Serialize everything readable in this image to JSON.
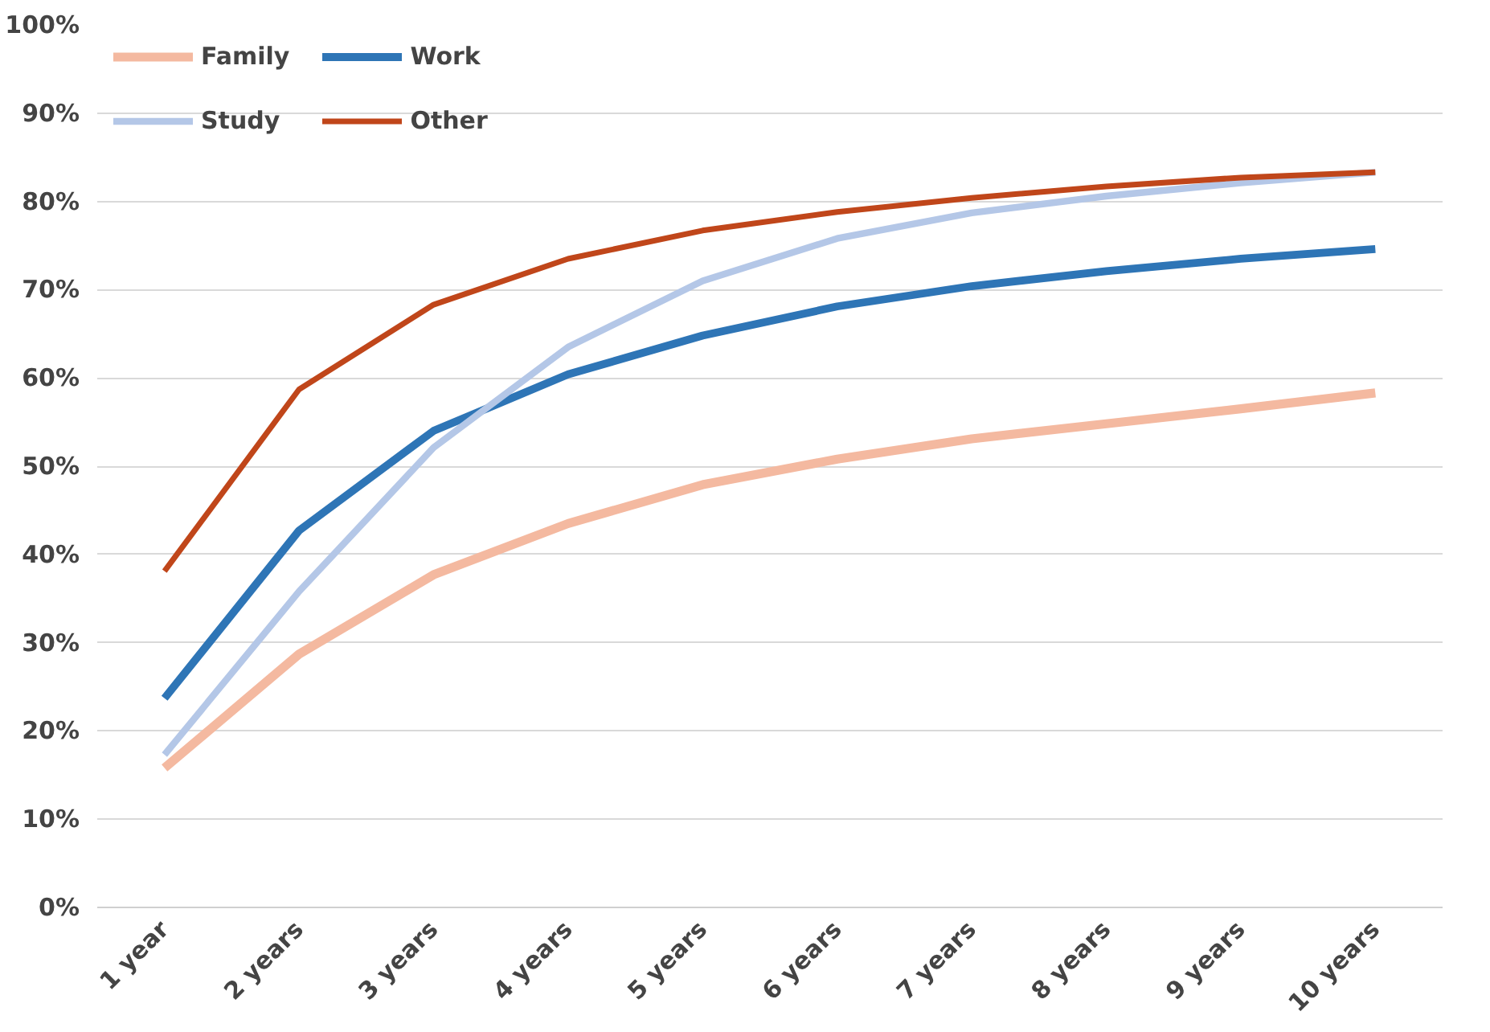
{
  "chart_data": {
    "type": "line",
    "categories": [
      "1 year",
      "2 years",
      "3 years",
      "4 years",
      "5 years",
      "6 years",
      "7 years",
      "8 years",
      "9 years",
      "10 years"
    ],
    "series": [
      {
        "name": "Family",
        "color": "#f4b9a0",
        "values": [
          15.8,
          28.7,
          37.7,
          43.5,
          47.9,
          50.8,
          53.1,
          54.8,
          56.5,
          58.3
        ]
      },
      {
        "name": "Work",
        "color": "#2e75b6",
        "values": [
          23.7,
          42.7,
          54.0,
          60.4,
          64.8,
          68.1,
          70.4,
          72.1,
          73.5,
          74.6
        ]
      },
      {
        "name": "Study",
        "color": "#b4c7e7",
        "values": [
          17.3,
          35.8,
          52.1,
          63.5,
          71.0,
          75.8,
          78.7,
          80.6,
          82.1,
          83.3
        ]
      },
      {
        "name": "Other",
        "color": "#c0461a",
        "values": [
          38.1,
          58.7,
          68.3,
          73.5,
          76.7,
          78.8,
          80.4,
          81.7,
          82.7,
          83.3
        ]
      }
    ],
    "ylim": [
      0,
      100
    ],
    "yticks": [
      {
        "value": 0,
        "label": "0%"
      },
      {
        "value": 10,
        "label": "10%"
      },
      {
        "value": 20,
        "label": "20%"
      },
      {
        "value": 30,
        "label": "30%"
      },
      {
        "value": 40,
        "label": "40%"
      },
      {
        "value": 50,
        "label": "50%"
      },
      {
        "value": 60,
        "label": "60%"
      },
      {
        "value": 70,
        "label": "70%"
      },
      {
        "value": 80,
        "label": "80%"
      },
      {
        "value": 90,
        "label": "90%"
      },
      {
        "value": 100,
        "label": "100%"
      }
    ],
    "grid": "y",
    "legend": "top left",
    "marker": "none",
    "line_style": "solid"
  }
}
